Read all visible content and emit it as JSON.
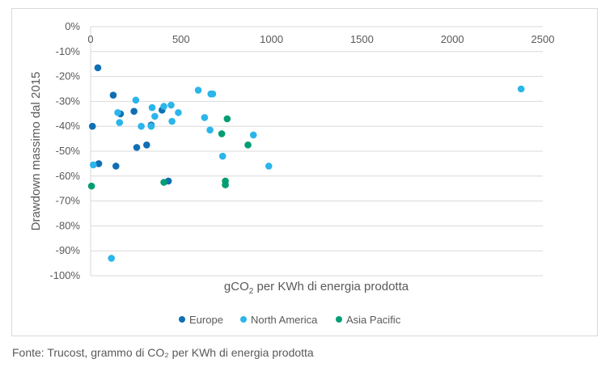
{
  "chart_data": {
    "type": "scatter",
    "xlabel_prefix": "gCO",
    "xlabel_sub": "2",
    "xlabel_suffix": " per KWh di energia prodotta",
    "ylabel": "Drawdown massimo dal 2015",
    "xlim": [
      0,
      2500
    ],
    "ylim": [
      -100,
      0
    ],
    "x_ticks": [
      0,
      500,
      1000,
      1500,
      2000,
      2500
    ],
    "x_tick_labels": [
      "0",
      "500",
      "1000",
      "1500",
      "2000",
      "2500"
    ],
    "y_ticks": [
      0,
      -10,
      -20,
      -30,
      -40,
      -50,
      -60,
      -70,
      -80,
      -90,
      -100
    ],
    "y_tick_labels": [
      "0%",
      "-10%",
      "-20%",
      "-30%",
      "-40%",
      "-50%",
      "-60%",
      "-70%",
      "-80%",
      "-90%",
      "-100%"
    ],
    "legend_position": "bottom",
    "series": [
      {
        "name": "Europe",
        "color": "#0f6fb4",
        "points": [
          [
            40,
            -16.5
          ],
          [
            125,
            -27.5
          ],
          [
            10,
            -40
          ],
          [
            45,
            -55
          ],
          [
            140,
            -56
          ],
          [
            165,
            -35
          ],
          [
            240,
            -34
          ],
          [
            255,
            -48.5
          ],
          [
            310,
            -47.5
          ],
          [
            335,
            -39.5
          ],
          [
            395,
            -33.5
          ],
          [
            430,
            -62
          ]
        ]
      },
      {
        "name": "North America",
        "color": "#2bb5ea",
        "points": [
          [
            15,
            -55.5
          ],
          [
            115,
            -93
          ],
          [
            150,
            -34.5
          ],
          [
            160,
            -38.5
          ],
          [
            250,
            -29.5
          ],
          [
            280,
            -40
          ],
          [
            335,
            -40
          ],
          [
            340,
            -32.5
          ],
          [
            355,
            -36
          ],
          [
            405,
            -32
          ],
          [
            445,
            -31.5
          ],
          [
            450,
            -38
          ],
          [
            485,
            -34.5
          ],
          [
            595,
            -25.5
          ],
          [
            630,
            -36.5
          ],
          [
            660,
            -41.5
          ],
          [
            665,
            -27
          ],
          [
            675,
            -27
          ],
          [
            730,
            -52
          ],
          [
            900,
            -43.5
          ],
          [
            985,
            -56
          ],
          [
            2380,
            -25
          ]
        ]
      },
      {
        "name": "Asia Pacific",
        "color": "#009e73",
        "points": [
          [
            5,
            -64
          ],
          [
            405,
            -62.5
          ],
          [
            725,
            -43
          ],
          [
            745,
            -62
          ],
          [
            745,
            -63.5
          ],
          [
            755,
            -37
          ],
          [
            870,
            -47.5
          ]
        ]
      }
    ]
  },
  "caption": "Fonte: Trucost, grammo di CO₂ per KWh di energia prodotta"
}
